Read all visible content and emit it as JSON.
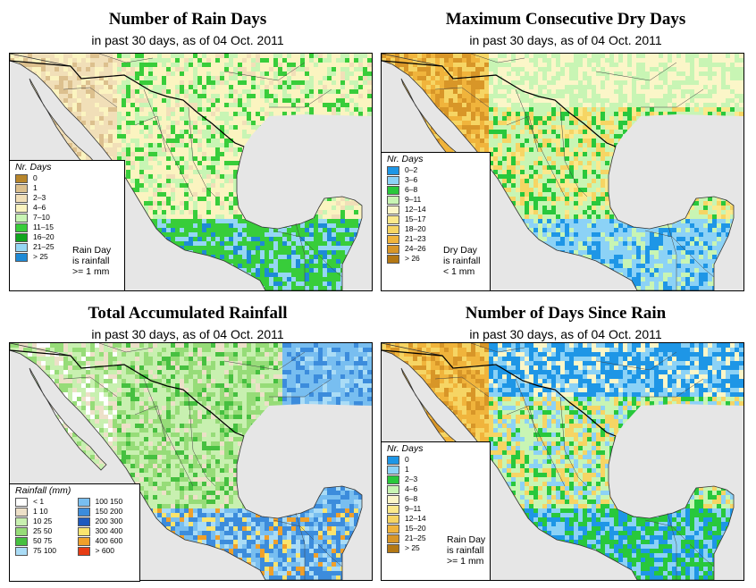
{
  "subtitle": "in past 30 days, as of  04 Oct. 2011",
  "panels": [
    {
      "title": "Number of Rain Days",
      "legend_title": "Nr. Days",
      "note": [
        "Rain Day",
        "is rainfall",
        ">= 1 mm"
      ],
      "classes": [
        {
          "label": "0",
          "color": "#b8862b"
        },
        {
          "label": "1",
          "color": "#dcc08e"
        },
        {
          "label": "2–3",
          "color": "#f1dfb8"
        },
        {
          "label": "4–6",
          "color": "#fbf4c0"
        },
        {
          "label": "7–10",
          "color": "#c8f5b4"
        },
        {
          "label": "11–15",
          "color": "#38cd3a"
        },
        {
          "label": "16–20",
          "color": "#10a51e"
        },
        {
          "label": "21–25",
          "color": "#96d6f4"
        },
        {
          "label": "> 25",
          "color": "#1e8ad6"
        }
      ]
    },
    {
      "title": "Maximum Consecutive Dry Days",
      "legend_title": "Nr. Days",
      "note": [
        "Dry Day",
        "is rainfall",
        "< 1 mm"
      ],
      "classes": [
        {
          "label": "0–2",
          "color": "#1e96e6"
        },
        {
          "label": "3–6",
          "color": "#8cd2f6"
        },
        {
          "label": "6–8",
          "color": "#28c83c"
        },
        {
          "label": "9–11",
          "color": "#c8f5b4"
        },
        {
          "label": "12–14",
          "color": "#fbf6c8"
        },
        {
          "label": "15–17",
          "color": "#fbe98c"
        },
        {
          "label": "18–20",
          "color": "#f6d564"
        },
        {
          "label": "21–23",
          "color": "#f0b43c"
        },
        {
          "label": "24–26",
          "color": "#d89628"
        },
        {
          "label": "> 26",
          "color": "#b47814"
        }
      ]
    },
    {
      "title": "Total Accumulated Rainfall",
      "legend_title": "Rainfall (mm)",
      "classes": [
        {
          "label": "< 1",
          "color": "#ffffff"
        },
        {
          "label": "1    10",
          "color": "#ede0c8"
        },
        {
          "label": "10    25",
          "color": "#c8f0b0"
        },
        {
          "label": "25    50",
          "color": "#96dc78"
        },
        {
          "label": "50    75",
          "color": "#46c040"
        },
        {
          "label": "75    100",
          "color": "#aadcf6"
        },
        {
          "label": "100  150",
          "color": "#78bef0"
        },
        {
          "label": "150  200",
          "color": "#3c8cdc"
        },
        {
          "label": "200  300",
          "color": "#1e5abe"
        },
        {
          "label": "300  400",
          "color": "#fae46e"
        },
        {
          "label": "400  600",
          "color": "#f0a02a"
        },
        {
          "label": "> 600",
          "color": "#e63c14"
        }
      ]
    },
    {
      "title": "Number of Days Since Rain",
      "legend_title": "Nr. Days",
      "note": [
        "Rain Day",
        "is rainfall",
        ">= 1 mm"
      ],
      "classes": [
        {
          "label": "0",
          "color": "#1e96e6"
        },
        {
          "label": "1",
          "color": "#8cd2f6"
        },
        {
          "label": "2–3",
          "color": "#28c83c"
        },
        {
          "label": "4–6",
          "color": "#c8f5b4"
        },
        {
          "label": "6–8",
          "color": "#fbf6c8"
        },
        {
          "label": "9–11",
          "color": "#fbe98c"
        },
        {
          "label": "12–14",
          "color": "#f6d564"
        },
        {
          "label": "15–20",
          "color": "#f0b43c"
        },
        {
          "label": "21–25",
          "color": "#d89628"
        },
        {
          "label": "> 25",
          "color": "#b47814"
        }
      ]
    }
  ]
}
